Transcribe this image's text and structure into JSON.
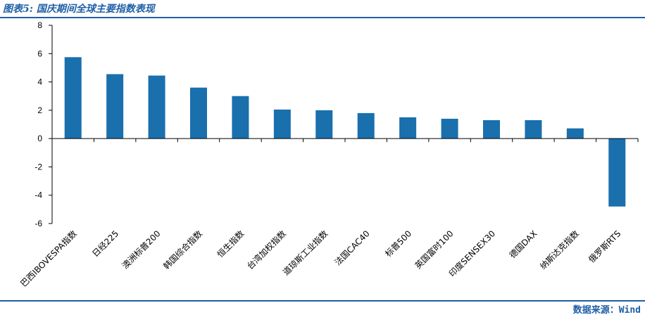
{
  "header": {
    "title": "图表5: 国庆期间全球主要指数表现"
  },
  "footer": {
    "source": "数据来源：Wind"
  },
  "colors": {
    "bar": "#1a6fad",
    "accent": "#1f5fa6",
    "axis": "#000000"
  },
  "chart_data": {
    "type": "bar",
    "categories": [
      "巴西IBOVESPA指数",
      "日经225",
      "澳洲标普200",
      "韩国综合指数",
      "恒生指数",
      "台湾加权指数",
      "道琼斯工业指数",
      "法国CAC40",
      "标普500",
      "英国富时100",
      "印度SENSEX30",
      "德国DAX",
      "纳斯达克指数",
      "俄罗斯RTS"
    ],
    "values": [
      5.75,
      4.55,
      4.45,
      3.6,
      3.0,
      2.05,
      2.0,
      1.8,
      1.5,
      1.4,
      1.3,
      1.3,
      0.72,
      -4.8
    ],
    "ylim": [
      -6,
      8
    ],
    "yticks": [
      8,
      6,
      4,
      2,
      0,
      -2,
      -4,
      -6
    ],
    "grid": false,
    "legend": "none"
  }
}
